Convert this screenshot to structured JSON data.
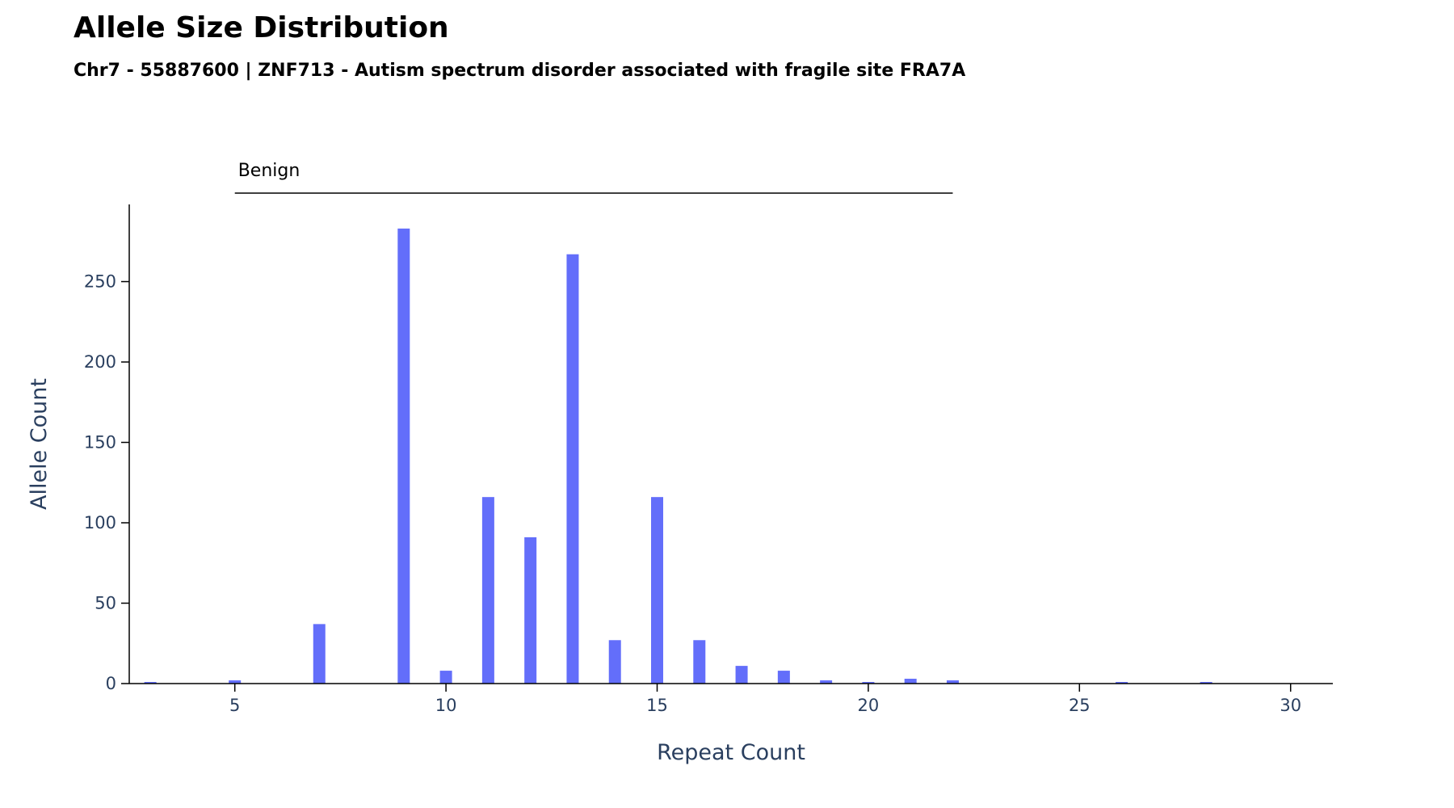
{
  "chart_data": {
    "type": "bar",
    "title": "Allele Size Distribution",
    "subtitle": "Chr7 - 55887600 | ZNF713 - Autism spectrum disorder associated with fragile site FRA7A",
    "xlabel": "Repeat Count",
    "ylabel": "Allele Count",
    "xlim": [
      2.5,
      31
    ],
    "ylim": [
      0,
      298
    ],
    "xticks": [
      5,
      10,
      15,
      20,
      25,
      30
    ],
    "yticks": [
      0,
      50,
      100,
      150,
      200,
      250
    ],
    "bar_color": "#636efa",
    "axis_text_color": "#2a3f5f",
    "grid": false,
    "x": [
      3,
      5,
      7,
      9,
      10,
      11,
      12,
      13,
      14,
      15,
      16,
      17,
      18,
      19,
      20,
      21,
      22,
      26,
      28
    ],
    "values": [
      1,
      2,
      37,
      283,
      8,
      116,
      91,
      267,
      27,
      116,
      27,
      11,
      8,
      2,
      1,
      3,
      2,
      1,
      1
    ],
    "annotations": [
      {
        "label": "Benign",
        "x_start": 5,
        "x_end": 22
      }
    ]
  }
}
